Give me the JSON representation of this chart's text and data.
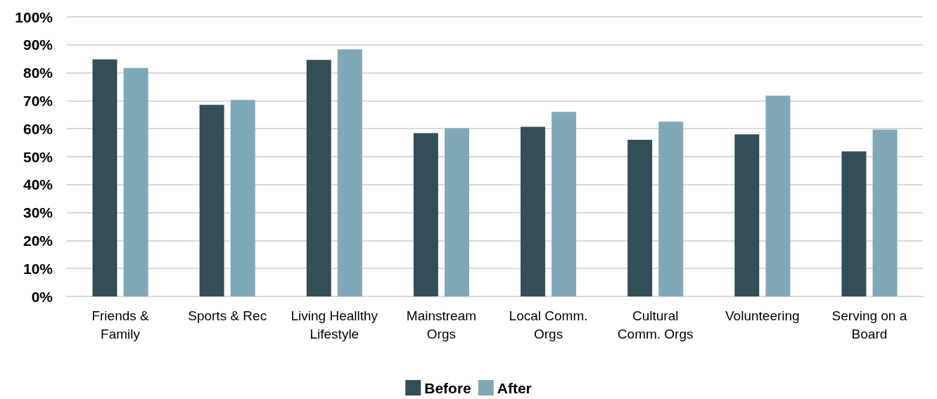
{
  "chart_data": {
    "type": "bar",
    "categories": [
      "Friends &\nFamily",
      "Sports & Rec",
      "Living Heallthy\nLifestyle",
      "Mainstream\nOrgs",
      "Local Comm.\nOrgs",
      "Cultural\nComm. Orgs",
      "Volunteering",
      "Serving on a\nBoard"
    ],
    "series": [
      {
        "name": "Before",
        "color": "#324f58",
        "values": [
          84.8,
          68.5,
          84.6,
          58.4,
          60.7,
          56.0,
          58.0,
          51.9
        ]
      },
      {
        "name": "After",
        "color": "#7fa9b9",
        "values": [
          81.7,
          70.3,
          88.4,
          60.2,
          66.0,
          62.5,
          71.8,
          59.7
        ]
      }
    ],
    "ylim": [
      0,
      100
    ],
    "yticks": [
      {
        "value": 0,
        "label": "0%"
      },
      {
        "value": 10,
        "label": "10%"
      },
      {
        "value": 20,
        "label": "20%"
      },
      {
        "value": 30,
        "label": "30%"
      },
      {
        "value": 40,
        "label": "40%"
      },
      {
        "value": 50,
        "label": "50%"
      },
      {
        "value": 60,
        "label": "60%"
      },
      {
        "value": 70,
        "label": "70%"
      },
      {
        "value": 80,
        "label": "80%"
      },
      {
        "value": 90,
        "label": "90%"
      },
      {
        "value": 100,
        "label": "100%"
      }
    ],
    "grid": "y",
    "legend": "bottom"
  }
}
